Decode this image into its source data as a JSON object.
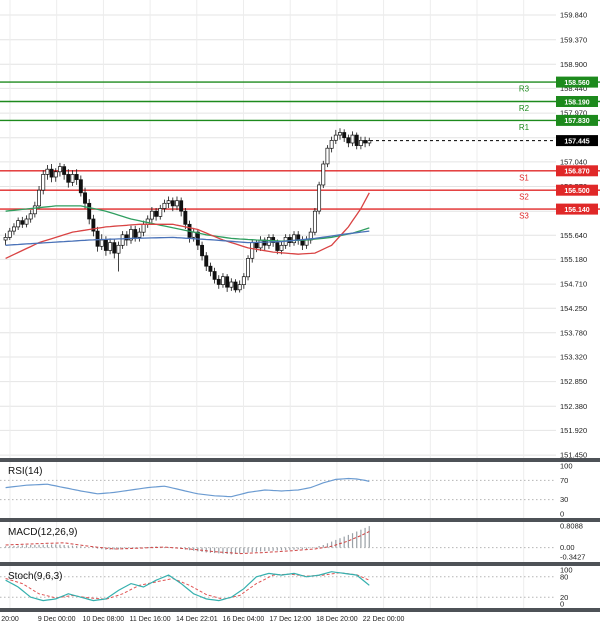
{
  "chart_data": {
    "type": "candlestick",
    "price_axis": {
      "labels": [
        "159.840",
        "159.370",
        "158.900",
        "158.440",
        "157.970",
        "157.500",
        "157.040",
        "156.570",
        "156.100",
        "155.640",
        "155.180",
        "154.710",
        "154.250",
        "153.780",
        "153.320",
        "152.850",
        "152.380",
        "151.920",
        "151.450"
      ]
    },
    "x_axis": {
      "labels": [
        "20:00",
        "9 Dec 00:00",
        "10 Dec 08:00",
        "11 Dec 16:00",
        "14 Dec 22:01",
        "16 Dec 04:00",
        "17 Dec 12:00",
        "18 Dec 20:00",
        "22 Dec 00:00"
      ]
    },
    "levels": [
      {
        "name": "R3",
        "value": 158.56,
        "label": "158.560",
        "type": "resistance"
      },
      {
        "name": "R2",
        "value": 158.19,
        "label": "158.190",
        "type": "resistance"
      },
      {
        "name": "R1",
        "value": 157.83,
        "label": "157.830",
        "type": "resistance"
      },
      {
        "name": "S1",
        "value": 156.87,
        "label": "156.870",
        "type": "support"
      },
      {
        "name": "S2",
        "value": 156.5,
        "label": "156.500",
        "type": "support"
      },
      {
        "name": "S3",
        "value": 156.14,
        "label": "156.140",
        "type": "support"
      }
    ],
    "current_price": {
      "value": 157.445,
      "label": "157.445"
    },
    "ylim": [
      151.39,
      160.13
    ],
    "candles": [
      [
        155.55,
        155.68,
        155.45,
        155.6
      ],
      [
        155.6,
        155.78,
        155.55,
        155.72
      ],
      [
        155.72,
        155.87,
        155.65,
        155.8
      ],
      [
        155.8,
        155.98,
        155.74,
        155.92
      ],
      [
        155.92,
        155.99,
        155.78,
        155.85
      ],
      [
        155.85,
        156.02,
        155.79,
        155.95
      ],
      [
        155.95,
        156.12,
        155.88,
        156.05
      ],
      [
        156.05,
        156.28,
        155.98,
        156.2
      ],
      [
        156.2,
        156.58,
        156.14,
        156.5
      ],
      [
        156.5,
        156.88,
        156.42,
        156.8
      ],
      [
        156.8,
        156.98,
        156.7,
        156.9
      ],
      [
        156.9,
        157.0,
        156.65,
        156.75
      ],
      [
        156.75,
        156.92,
        156.66,
        156.85
      ],
      [
        156.85,
        157.02,
        156.76,
        156.95
      ],
      [
        156.95,
        157.0,
        156.7,
        156.8
      ],
      [
        156.8,
        156.9,
        156.55,
        156.65
      ],
      [
        156.65,
        156.88,
        156.58,
        156.8
      ],
      [
        156.8,
        156.9,
        156.6,
        156.7
      ],
      [
        156.7,
        156.78,
        156.38,
        156.45
      ],
      [
        156.45,
        156.55,
        156.15,
        156.25
      ],
      [
        156.25,
        156.33,
        155.85,
        155.95
      ],
      [
        155.95,
        156.03,
        155.62,
        155.72
      ],
      [
        155.72,
        155.8,
        155.33,
        155.43
      ],
      [
        155.43,
        155.66,
        155.36,
        155.55
      ],
      [
        155.55,
        155.62,
        155.25,
        155.35
      ],
      [
        155.35,
        155.58,
        155.28,
        155.5
      ],
      [
        155.5,
        155.56,
        155.2,
        155.3
      ],
      [
        155.3,
        155.52,
        154.95,
        155.45
      ],
      [
        155.45,
        155.72,
        155.38,
        155.65
      ],
      [
        155.65,
        155.72,
        155.44,
        155.55
      ],
      [
        155.55,
        155.82,
        155.48,
        155.75
      ],
      [
        155.75,
        155.82,
        155.52,
        155.6
      ],
      [
        155.6,
        155.78,
        155.52,
        155.7
      ],
      [
        155.7,
        155.92,
        155.62,
        155.85
      ],
      [
        155.85,
        156.02,
        155.78,
        155.95
      ],
      [
        155.95,
        156.18,
        155.88,
        156.1
      ],
      [
        156.1,
        156.16,
        155.92,
        156.0
      ],
      [
        156.0,
        156.22,
        155.94,
        156.15
      ],
      [
        156.15,
        156.32,
        156.08,
        156.25
      ],
      [
        156.25,
        156.38,
        156.16,
        156.3
      ],
      [
        156.3,
        156.36,
        156.1,
        156.2
      ],
      [
        156.2,
        156.38,
        156.12,
        156.3
      ],
      [
        156.3,
        156.36,
        156.0,
        156.1
      ],
      [
        156.1,
        156.16,
        155.76,
        155.85
      ],
      [
        155.85,
        155.92,
        155.5,
        155.6
      ],
      [
        155.6,
        155.78,
        155.52,
        155.7
      ],
      [
        155.7,
        155.76,
        155.36,
        155.45
      ],
      [
        155.45,
        155.52,
        155.16,
        155.25
      ],
      [
        155.25,
        155.32,
        154.96,
        155.05
      ],
      [
        155.05,
        155.12,
        154.86,
        154.95
      ],
      [
        154.95,
        155.02,
        154.72,
        154.8
      ],
      [
        154.8,
        154.88,
        154.62,
        154.7
      ],
      [
        154.7,
        154.92,
        154.64,
        154.85
      ],
      [
        154.85,
        154.9,
        154.56,
        154.65
      ],
      [
        154.65,
        154.82,
        154.58,
        154.75
      ],
      [
        154.75,
        154.8,
        154.55,
        154.6
      ],
      [
        154.6,
        154.78,
        154.55,
        154.7
      ],
      [
        154.7,
        154.92,
        154.62,
        154.85
      ],
      [
        154.85,
        155.26,
        154.78,
        155.2
      ],
      [
        155.2,
        155.56,
        155.12,
        155.5
      ],
      [
        155.5,
        155.56,
        155.32,
        155.4
      ],
      [
        155.4,
        155.62,
        155.34,
        155.55
      ],
      [
        155.55,
        155.6,
        155.36,
        155.45
      ],
      [
        155.45,
        155.66,
        155.38,
        155.6
      ],
      [
        155.6,
        155.66,
        155.42,
        155.5
      ],
      [
        155.5,
        155.56,
        155.28,
        155.35
      ],
      [
        155.35,
        155.52,
        155.28,
        155.45
      ],
      [
        155.45,
        155.66,
        155.38,
        155.6
      ],
      [
        155.6,
        155.66,
        155.42,
        155.5
      ],
      [
        155.5,
        155.72,
        155.44,
        155.65
      ],
      [
        155.65,
        155.72,
        155.46,
        155.55
      ],
      [
        155.55,
        155.62,
        155.36,
        155.45
      ],
      [
        155.45,
        155.62,
        155.38,
        155.55
      ],
      [
        155.55,
        155.78,
        155.48,
        155.7
      ],
      [
        155.7,
        156.16,
        155.64,
        156.1
      ],
      [
        156.1,
        156.66,
        156.04,
        156.6
      ],
      [
        156.6,
        157.06,
        156.54,
        157.0
      ],
      [
        157.0,
        157.36,
        156.94,
        157.3
      ],
      [
        157.3,
        157.52,
        157.22,
        157.45
      ],
      [
        157.45,
        157.65,
        157.38,
        157.55
      ],
      [
        157.55,
        157.68,
        157.46,
        157.6
      ],
      [
        157.6,
        157.66,
        157.42,
        157.5
      ],
      [
        157.5,
        157.56,
        157.32,
        157.4
      ],
      [
        157.4,
        157.62,
        157.34,
        157.55
      ],
      [
        157.55,
        157.6,
        157.28,
        157.35
      ],
      [
        157.35,
        157.52,
        157.28,
        157.45
      ],
      [
        157.45,
        157.52,
        157.32,
        157.4
      ],
      [
        157.4,
        157.5,
        157.34,
        157.445
      ]
    ],
    "moving_averages": [
      {
        "name": "ma-green",
        "color": "#2f9e5f",
        "keypoints": [
          [
            0,
            156.1
          ],
          [
            6,
            156.15
          ],
          [
            12,
            156.2
          ],
          [
            18,
            156.2
          ],
          [
            24,
            156.1
          ],
          [
            30,
            155.95
          ],
          [
            36,
            155.85
          ],
          [
            42,
            155.75
          ],
          [
            48,
            155.65
          ],
          [
            54,
            155.58
          ],
          [
            60,
            155.55
          ],
          [
            66,
            155.53
          ],
          [
            72,
            155.55
          ],
          [
            78,
            155.6
          ],
          [
            83,
            155.68
          ],
          [
            87,
            155.78
          ]
        ]
      },
      {
        "name": "ma-red",
        "color": "#d94343",
        "keypoints": [
          [
            0,
            155.2
          ],
          [
            8,
            155.5
          ],
          [
            16,
            155.7
          ],
          [
            24,
            155.8
          ],
          [
            32,
            155.85
          ],
          [
            40,
            155.85
          ],
          [
            46,
            155.75
          ],
          [
            52,
            155.55
          ],
          [
            58,
            155.4
          ],
          [
            64,
            155.32
          ],
          [
            70,
            155.28
          ],
          [
            74,
            155.3
          ],
          [
            78,
            155.45
          ],
          [
            82,
            155.8
          ],
          [
            85,
            156.15
          ],
          [
            87,
            156.45
          ]
        ]
      },
      {
        "name": "ma-blue",
        "color": "#4a72b8",
        "keypoints": [
          [
            0,
            155.45
          ],
          [
            10,
            155.5
          ],
          [
            20,
            155.55
          ],
          [
            30,
            155.58
          ],
          [
            40,
            155.6
          ],
          [
            50,
            155.55
          ],
          [
            58,
            155.5
          ],
          [
            66,
            155.52
          ],
          [
            74,
            155.58
          ],
          [
            80,
            155.65
          ],
          [
            87,
            155.72
          ]
        ]
      }
    ],
    "indicators": {
      "rsi": {
        "title": "RSI(14)",
        "line_color": "#6b9bd1",
        "axis": {
          "values": [
            100,
            70,
            30,
            0
          ],
          "labels": [
            "100",
            "70",
            "30",
            "0"
          ]
        },
        "dotted_levels": [
          70,
          30
        ],
        "keypoints": [
          [
            0,
            55
          ],
          [
            5,
            60
          ],
          [
            10,
            62
          ],
          [
            14,
            55
          ],
          [
            18,
            48
          ],
          [
            22,
            42
          ],
          [
            26,
            45
          ],
          [
            30,
            50
          ],
          [
            34,
            55
          ],
          [
            38,
            58
          ],
          [
            42,
            50
          ],
          [
            46,
            42
          ],
          [
            50,
            38
          ],
          [
            54,
            36
          ],
          [
            58,
            45
          ],
          [
            62,
            50
          ],
          [
            66,
            48
          ],
          [
            70,
            50
          ],
          [
            73,
            55
          ],
          [
            76,
            65
          ],
          [
            79,
            72
          ],
          [
            82,
            74
          ],
          [
            84,
            73
          ],
          [
            86,
            70
          ],
          [
            87,
            68
          ]
        ]
      },
      "macd": {
        "title": "MACD(12,26,9)",
        "signal_color": "#d04545",
        "hist_color": "#9aa0a6",
        "axis": {
          "values": [
            0.8088,
            0,
            -0.3427
          ],
          "labels": [
            "0.8088",
            "0.00",
            "-0.3427"
          ]
        },
        "hist_keypoints": [
          [
            0,
            0.05
          ],
          [
            6,
            0.1
          ],
          [
            12,
            0.12
          ],
          [
            18,
            0.05
          ],
          [
            24,
            -0.08
          ],
          [
            30,
            -0.05
          ],
          [
            36,
            0.05
          ],
          [
            42,
            -0.05
          ],
          [
            48,
            -0.18
          ],
          [
            54,
            -0.25
          ],
          [
            60,
            -0.15
          ],
          [
            66,
            -0.1
          ],
          [
            72,
            -0.05
          ],
          [
            76,
            0.1
          ],
          [
            80,
            0.35
          ],
          [
            84,
            0.6
          ],
          [
            87,
            0.8
          ]
        ],
        "signal_keypoints": [
          [
            0,
            0.1
          ],
          [
            8,
            0.15
          ],
          [
            14,
            0.18
          ],
          [
            20,
            0.05
          ],
          [
            26,
            -0.05
          ],
          [
            32,
            -0.02
          ],
          [
            38,
            0.02
          ],
          [
            44,
            -0.05
          ],
          [
            50,
            -0.15
          ],
          [
            56,
            -0.22
          ],
          [
            62,
            -0.18
          ],
          [
            68,
            -0.12
          ],
          [
            74,
            -0.05
          ],
          [
            78,
            0.05
          ],
          [
            82,
            0.25
          ],
          [
            85,
            0.45
          ],
          [
            87,
            0.6
          ]
        ]
      },
      "stoch": {
        "title": "Stoch(9,6,3)",
        "k_color": "#35b0ae",
        "d_color": "#e05555",
        "axis": {
          "values": [
            100,
            80,
            20,
            0
          ],
          "labels": [
            "100",
            "80",
            "20",
            "0"
          ]
        },
        "dotted_levels": [
          80,
          20
        ],
        "k_keypoints": [
          [
            0,
            70
          ],
          [
            3,
            50
          ],
          [
            6,
            20
          ],
          [
            9,
            10
          ],
          [
            12,
            15
          ],
          [
            15,
            30
          ],
          [
            18,
            20
          ],
          [
            21,
            10
          ],
          [
            24,
            15
          ],
          [
            27,
            40
          ],
          [
            30,
            60
          ],
          [
            33,
            50
          ],
          [
            36,
            70
          ],
          [
            39,
            85
          ],
          [
            42,
            60
          ],
          [
            45,
            30
          ],
          [
            48,
            15
          ],
          [
            51,
            10
          ],
          [
            54,
            20
          ],
          [
            57,
            45
          ],
          [
            60,
            80
          ],
          [
            63,
            90
          ],
          [
            66,
            85
          ],
          [
            69,
            90
          ],
          [
            72,
            80
          ],
          [
            75,
            85
          ],
          [
            78,
            95
          ],
          [
            81,
            90
          ],
          [
            84,
            85
          ],
          [
            86,
            65
          ],
          [
            87,
            55
          ]
        ],
        "d_keypoints": [
          [
            0,
            75
          ],
          [
            4,
            60
          ],
          [
            8,
            30
          ],
          [
            12,
            18
          ],
          [
            16,
            25
          ],
          [
            20,
            18
          ],
          [
            24,
            14
          ],
          [
            28,
            30
          ],
          [
            32,
            55
          ],
          [
            36,
            65
          ],
          [
            40,
            75
          ],
          [
            44,
            55
          ],
          [
            48,
            28
          ],
          [
            52,
            14
          ],
          [
            56,
            25
          ],
          [
            60,
            60
          ],
          [
            64,
            85
          ],
          [
            68,
            88
          ],
          [
            72,
            82
          ],
          [
            76,
            85
          ],
          [
            80,
            92
          ],
          [
            84,
            86
          ],
          [
            87,
            70
          ]
        ]
      }
    },
    "colors": {
      "up_candle": "#ffffff",
      "down_candle": "#111111",
      "candle_outline": "#111111",
      "resistance": "#1d8a1d",
      "support": "#e02828",
      "current": "#000000",
      "grid": "#e4e4e4",
      "grid_v": "#ededed",
      "dotted": "#b5b5b5",
      "separator": "#4e5257",
      "label_text": "#222222",
      "box_text": "#ffffff"
    }
  }
}
